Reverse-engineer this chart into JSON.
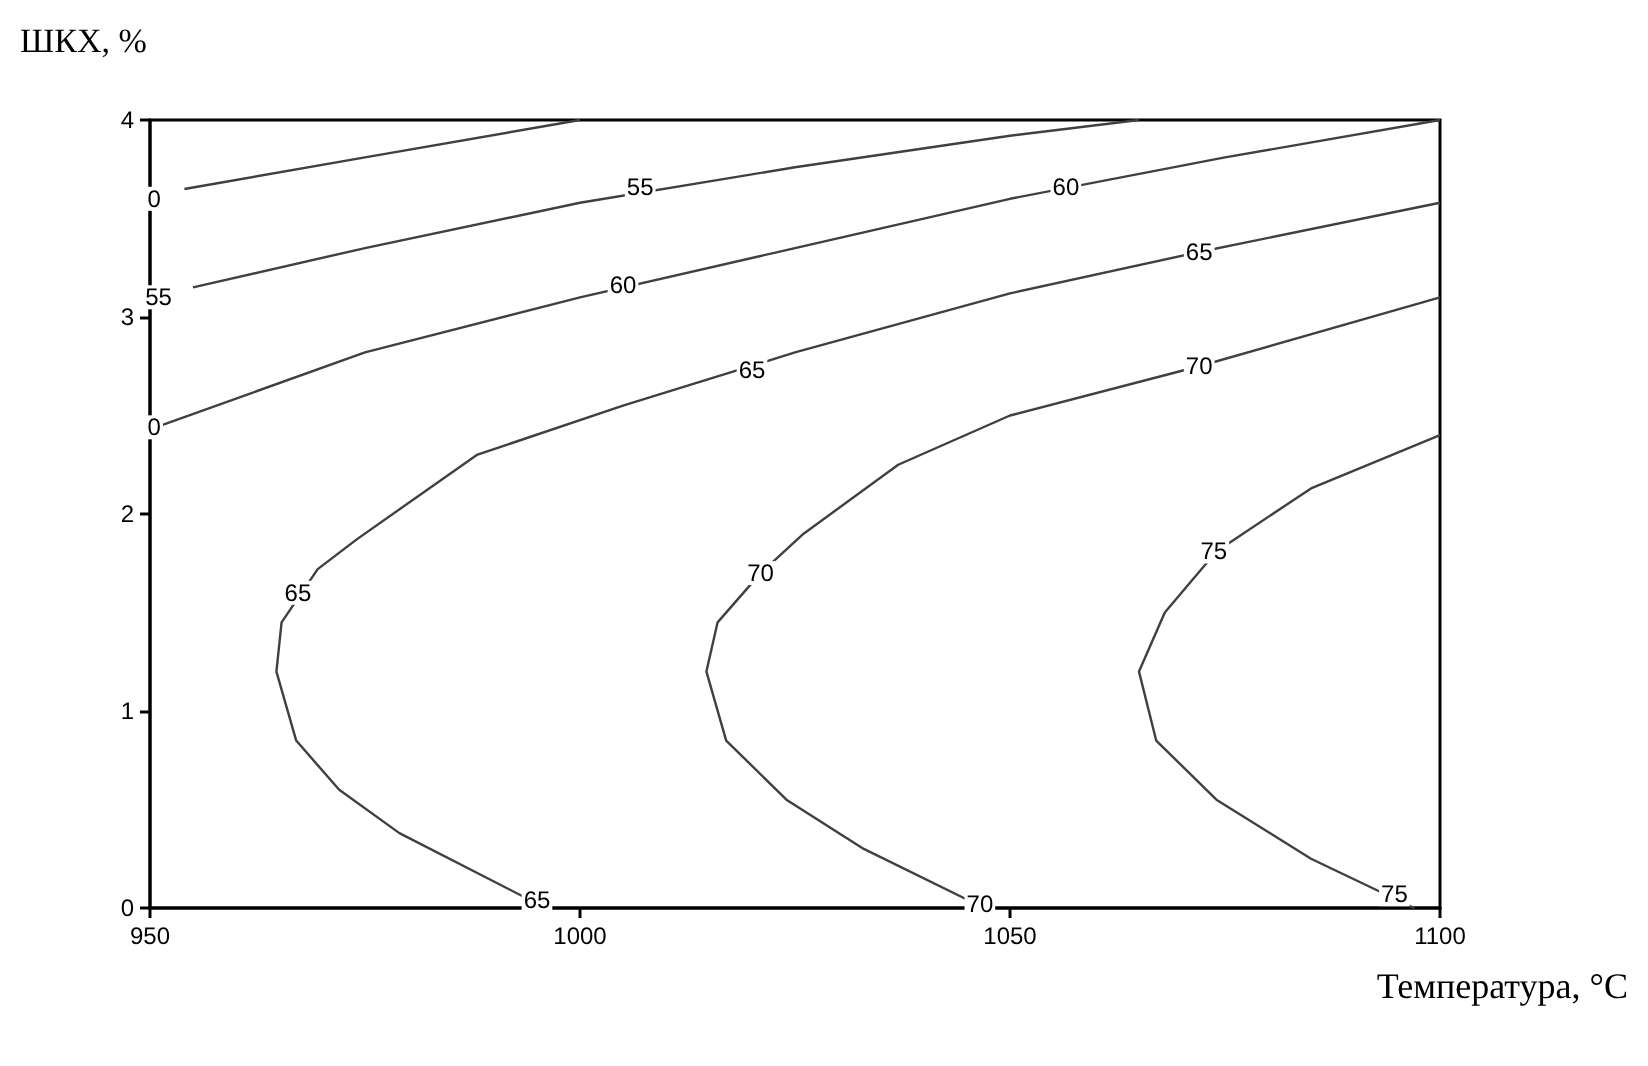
{
  "chart_data": {
    "type": "line",
    "xlabel": "Температура, °C",
    "ylabel": "ШКХ, %",
    "xlim": [
      950,
      1100
    ],
    "xticks": [
      950,
      1000,
      1050,
      1100
    ],
    "ylim": [
      0,
      4
    ],
    "yticks": [
      0,
      1,
      2,
      3,
      4
    ],
    "grid": false,
    "marker": "none",
    "line_style": "solid",
    "series": [
      {
        "color": "#404040",
        "x": [
          954,
          975,
          1000
        ],
        "values": [
          3.65,
          3.81,
          4.0
        ]
      },
      {
        "color": "#404040",
        "x": [
          955,
          975,
          1000,
          1025,
          1050,
          1065
        ],
        "values": [
          3.15,
          3.35,
          3.58,
          3.76,
          3.92,
          4.0
        ]
      },
      {
        "color": "#404040",
        "x": [
          950,
          975,
          1000,
          1025,
          1050,
          1075,
          1100
        ],
        "values": [
          2.43,
          2.82,
          3.1,
          3.35,
          3.6,
          3.81,
          4.0
        ]
      },
      {
        "color": "#404040",
        "x": [
          1100,
          1072,
          1050,
          1025,
          1005,
          988,
          974,
          969.5,
          965.3,
          964.7,
          967,
          972,
          979,
          996
        ],
        "values": [
          3.58,
          3.33,
          3.12,
          2.82,
          2.55,
          2.3,
          1.87,
          1.72,
          1.45,
          1.2,
          0.85,
          0.6,
          0.38,
          0
        ]
      },
      {
        "color": "#404040",
        "x": [
          1100,
          1072,
          1050,
          1037,
          1026,
          1021,
          1016,
          1014.7,
          1017,
          1024,
          1033,
          1047
        ],
        "values": [
          3.1,
          2.75,
          2.5,
          2.25,
          1.9,
          1.7,
          1.45,
          1.2,
          0.85,
          0.55,
          0.3,
          0
        ]
      },
      {
        "color": "#404040",
        "x": [
          1100,
          1085,
          1074,
          1068,
          1065,
          1067,
          1074,
          1085,
          1097
        ],
        "values": [
          2.4,
          2.13,
          1.81,
          1.5,
          1.2,
          0.85,
          0.55,
          0.25,
          0
        ]
      }
    ],
    "annotations": [
      {
        "text": "0",
        "x": 950.5,
        "y": 3.6
      },
      {
        "text": "55",
        "x": 951,
        "y": 3.1
      },
      {
        "text": "55",
        "x": 1007,
        "y": 3.66
      },
      {
        "text": "60",
        "x": 1005,
        "y": 3.16
      },
      {
        "text": "60",
        "x": 1056.5,
        "y": 3.66
      },
      {
        "text": "0",
        "x": 950.5,
        "y": 2.44
      },
      {
        "text": "65",
        "x": 1072,
        "y": 3.33
      },
      {
        "text": "65",
        "x": 1020,
        "y": 2.73
      },
      {
        "text": "65",
        "x": 967.2,
        "y": 1.6
      },
      {
        "text": "65",
        "x": 995,
        "y": 0.04
      },
      {
        "text": "70",
        "x": 1072,
        "y": 2.75
      },
      {
        "text": "70",
        "x": 1021,
        "y": 1.7
      },
      {
        "text": "70",
        "x": 1046.5,
        "y": 0.02
      },
      {
        "text": "75",
        "x": 1073.7,
        "y": 1.81
      },
      {
        "text": "75",
        "x": 1094.7,
        "y": 0.07
      }
    ]
  }
}
